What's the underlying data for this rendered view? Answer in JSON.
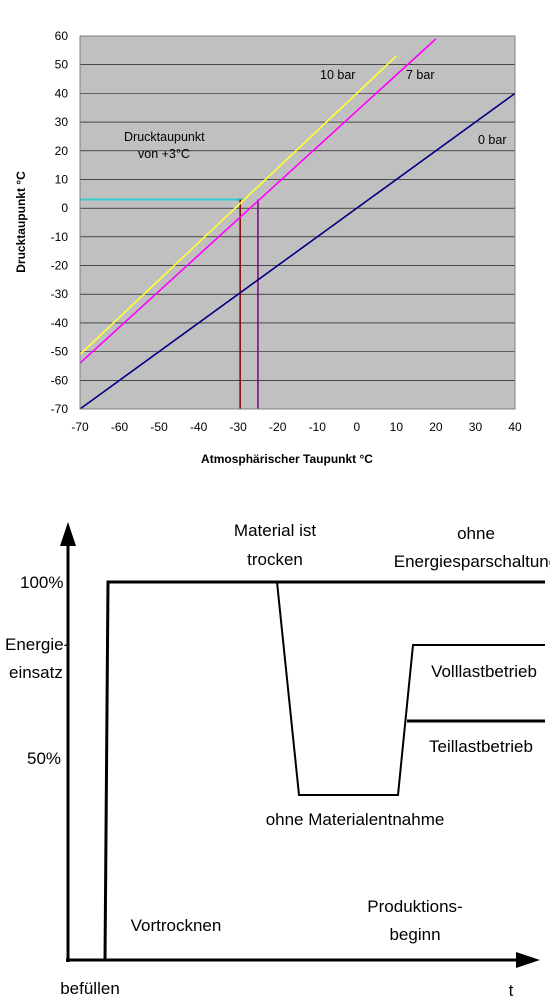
{
  "chart_data": [
    {
      "type": "line",
      "xlabel": "Atmosphärischer Taupunkt °C",
      "ylabel": "Drucktaupunkt °C",
      "xlim": [
        -70,
        40
      ],
      "ylim": [
        -70,
        60
      ],
      "x_ticks": [
        "-70",
        "-60",
        "-50",
        "-40",
        "-30",
        "-20",
        "-10",
        "0",
        "10",
        "20",
        "30",
        "40"
      ],
      "y_ticks": [
        "60",
        "50",
        "40",
        "30",
        "20",
        "10",
        "0",
        "-10",
        "-20",
        "-30",
        "-40",
        "-50",
        "-60",
        "-70"
      ],
      "grid": "horizontal",
      "background": "#c0c0c0",
      "series": [
        {
          "name": "10 bar",
          "color": "#ffff33",
          "x": [
            -70,
            10
          ],
          "y": [
            -51,
            53
          ]
        },
        {
          "name": "7 bar",
          "color": "#ff00ff",
          "x": [
            -70,
            20
          ],
          "y": [
            -54,
            59
          ]
        },
        {
          "name": "0 bar",
          "color": "#000080",
          "x": [
            -70,
            40
          ],
          "y": [
            -70,
            40
          ]
        }
      ],
      "reference_lines": [
        {
          "color": "#33cccc",
          "orientation": "horizontal",
          "y": 3,
          "x_from": -70,
          "x_to": -28.5
        },
        {
          "color": "#800000",
          "orientation": "vertical",
          "x": -29.5,
          "y_from": -70,
          "y_to": 3
        },
        {
          "color": "#800080",
          "orientation": "vertical",
          "x": -25,
          "y_from": -70,
          "y_to": 3
        }
      ],
      "annotations": {
        "line_10bar": "10 bar",
        "line_7bar": "7 bar",
        "line_0bar": "0 bar",
        "dewpoint_line1": "Drucktaupunkt",
        "dewpoint_line2": "von +3°C"
      }
    },
    {
      "type": "line",
      "xlabel": "t",
      "ylabel_line1": "Energie-",
      "ylabel_line2": "einsatz",
      "y_ticks": [
        "100%",
        "50%"
      ],
      "labels": {
        "befuellen": "befüllen",
        "material_line1": "Material ist",
        "material_line2": "trocken",
        "ohne_line1": "ohne",
        "ohne_line2": "Energiesparschaltung",
        "volllast": "Volllastbetrieb",
        "teillast": "Teillastbetrieb",
        "ohne_material": "ohne Materialentnahme",
        "vortrocknen": "Vortrocknen",
        "produktion_line1": "Produktions-",
        "produktion_line2": "beginn"
      }
    }
  ]
}
